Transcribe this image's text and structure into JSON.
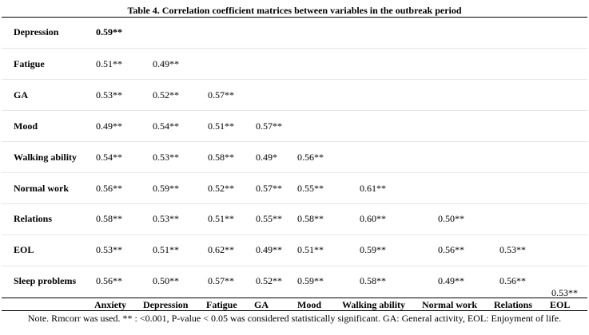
{
  "title": "Table 4.  Correlation coefficient matrices between variables in the outbreak period",
  "columns": [
    "Anxiety",
    "Depression",
    "Fatigue",
    "GA",
    "Mood",
    "Walking ability",
    "Normal work",
    "Relations",
    "EOL"
  ],
  "rows": [
    {
      "label": "Depression",
      "values": [
        "0.59**"
      ]
    },
    {
      "label": "Fatigue",
      "values": [
        "0.51**",
        "0.49**"
      ]
    },
    {
      "label": "GA",
      "values": [
        "0.53**",
        "0.52**",
        "0.57**"
      ]
    },
    {
      "label": "Mood",
      "values": [
        "0.49**",
        "0.54**",
        "0.51**",
        "0.57**"
      ]
    },
    {
      "label": "Walking ability",
      "values": [
        "0.54**",
        "0.53**",
        "0.58**",
        "0.49*",
        "0.56**"
      ]
    },
    {
      "label": "Normal work",
      "values": [
        "0.56**",
        "0.59**",
        "0.52**",
        "0.57**",
        "0.55**",
        "0.61**"
      ]
    },
    {
      "label": "Relations",
      "values": [
        "0.58**",
        "0.53**",
        "0.51**",
        "0.55**",
        "0.58**",
        "0.60**",
        "0.50**"
      ]
    },
    {
      "label": "EOL",
      "values": [
        "0.53**",
        "0.51**",
        "0.62**",
        "0.49**",
        "0.51**",
        "0.59**",
        "0.56**",
        "0.53**"
      ]
    },
    {
      "label": "Sleep problems",
      "values": [
        "0.56**",
        "0.50**",
        "0.57**",
        "0.52**",
        "0.59**",
        "0.58**",
        "0.49**",
        "0.56**",
        "0.53**"
      ]
    }
  ],
  "note": "Note. Rmcorr was used. ** : <0.001, P-value < 0.05 was considered statistically significant. GA: General activity, EOL: Enjoyment of life."
}
